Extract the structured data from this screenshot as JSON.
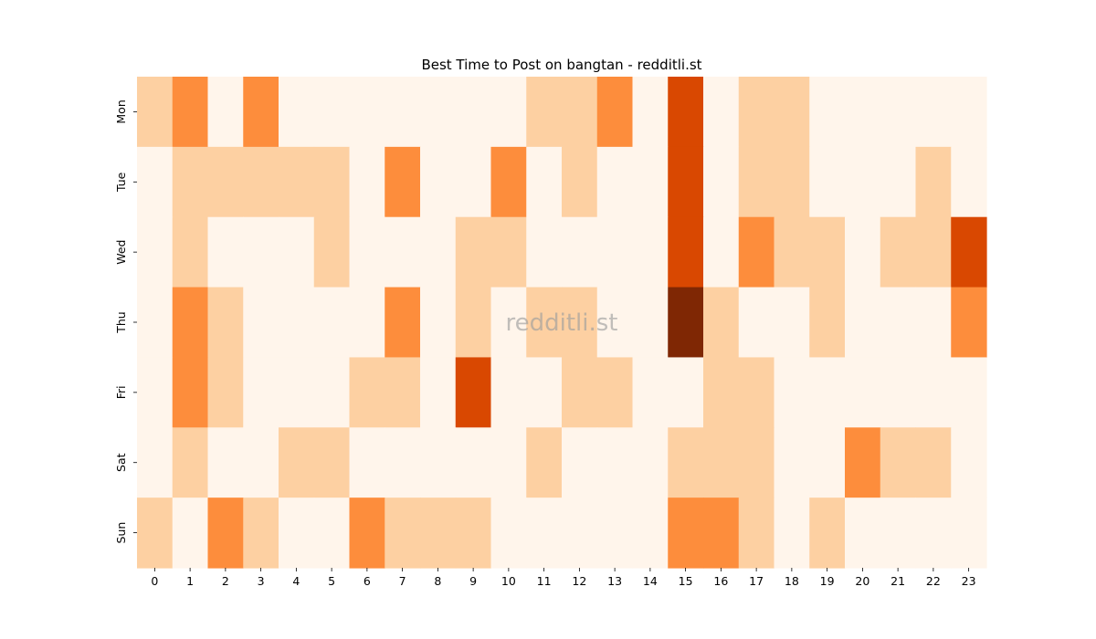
{
  "chart_data": {
    "type": "heatmap",
    "title": "Best Time to Post on bangtan - redditli.st",
    "watermark": "redditli.st",
    "x_categories": [
      "0",
      "1",
      "2",
      "3",
      "4",
      "5",
      "6",
      "7",
      "8",
      "9",
      "10",
      "11",
      "12",
      "13",
      "14",
      "15",
      "16",
      "17",
      "18",
      "19",
      "20",
      "21",
      "22",
      "23"
    ],
    "y_categories": [
      "Mon",
      "Tue",
      "Wed",
      "Thu",
      "Fri",
      "Sat",
      "Sun"
    ],
    "values": [
      [
        1,
        2,
        0,
        2,
        0,
        0,
        0,
        0,
        0,
        0,
        0,
        1,
        1,
        2,
        0,
        3,
        0,
        1,
        1,
        0,
        0,
        0,
        0,
        0
      ],
      [
        0,
        1,
        1,
        1,
        1,
        1,
        0,
        2,
        0,
        0,
        2,
        0,
        1,
        0,
        0,
        3,
        0,
        1,
        1,
        0,
        0,
        0,
        1,
        0
      ],
      [
        0,
        1,
        0,
        0,
        0,
        1,
        0,
        0,
        0,
        1,
        1,
        0,
        0,
        0,
        0,
        3,
        0,
        2,
        1,
        1,
        0,
        1,
        1,
        3
      ],
      [
        0,
        2,
        1,
        0,
        0,
        0,
        0,
        2,
        0,
        1,
        0,
        1,
        1,
        0,
        0,
        4,
        1,
        0,
        0,
        1,
        0,
        0,
        0,
        2
      ],
      [
        0,
        2,
        1,
        0,
        0,
        0,
        1,
        1,
        0,
        3,
        0,
        0,
        1,
        1,
        0,
        0,
        1,
        1,
        0,
        0,
        0,
        0,
        0,
        0
      ],
      [
        0,
        1,
        0,
        0,
        1,
        1,
        0,
        0,
        0,
        0,
        0,
        1,
        0,
        0,
        0,
        1,
        1,
        1,
        0,
        0,
        2,
        1,
        1,
        0
      ],
      [
        1,
        0,
        2,
        1,
        0,
        0,
        2,
        1,
        1,
        1,
        0,
        0,
        0,
        0,
        0,
        2,
        2,
        1,
        0,
        1,
        0,
        0,
        0,
        0
      ]
    ],
    "colorscale": [
      "#fff5eb",
      "#fdd0a2",
      "#fd8d3c",
      "#d94801",
      "#7f2704"
    ],
    "colorbar": false,
    "grid": false
  }
}
